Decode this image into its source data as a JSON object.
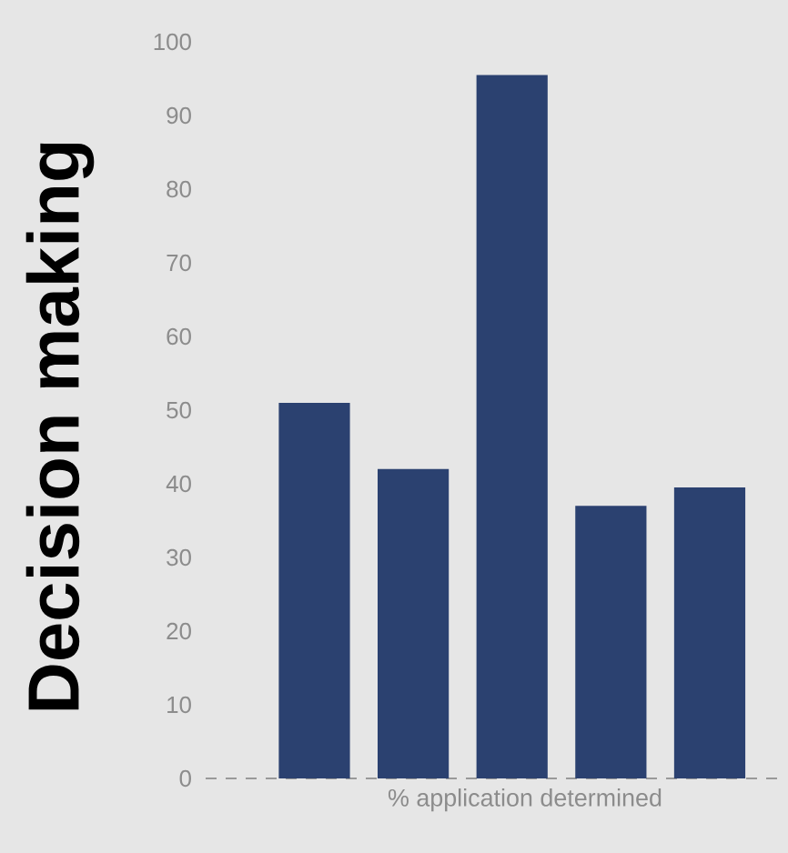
{
  "chart_data": {
    "type": "bar",
    "xlabel": "% application determined",
    "ylabel": "Decision making",
    "categories": [
      null,
      null,
      null,
      null,
      null
    ],
    "values": [
      51,
      42,
      95.5,
      37,
      39.5
    ],
    "color": "#2b4170",
    "ylim": [
      0,
      100
    ],
    "yticks": [
      0,
      10,
      20,
      30,
      40,
      50,
      60,
      70,
      80,
      90,
      100
    ],
    "ref_lines": [
      {
        "axis": "y",
        "value": 0,
        "color": "#999999",
        "line_style": "dashed"
      }
    ]
  }
}
